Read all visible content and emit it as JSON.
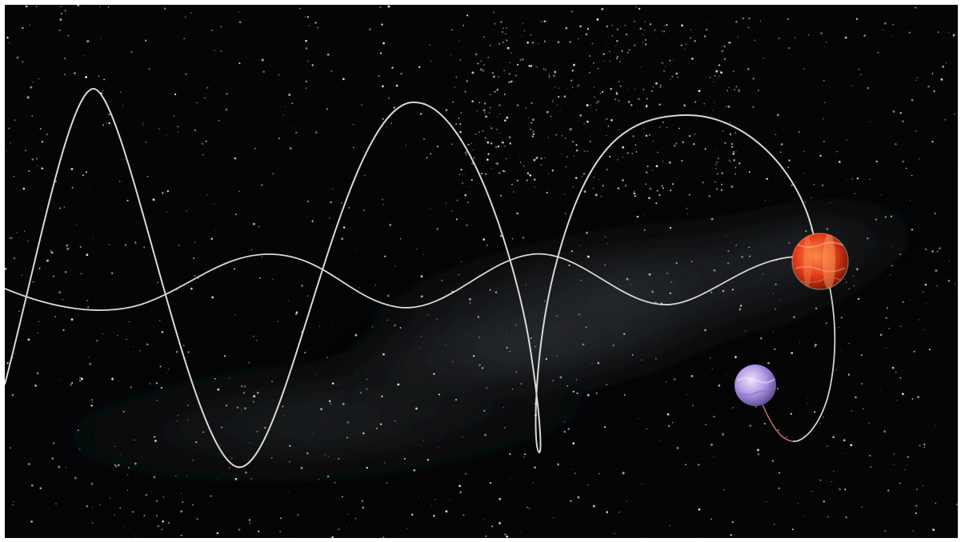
{
  "scene": {
    "subject": "",
    "colors": {
      "space": "#050505",
      "nebula": "#3a3f46",
      "star": "#e8e8e8",
      "path": "#d9d9d9",
      "planet_red": "#e8421c",
      "planet_red_band": "#ffb36b",
      "planet_purple": "#a996e0",
      "planet_purple_light": "#e8d9f5",
      "tail": "#b06a60"
    }
  }
}
